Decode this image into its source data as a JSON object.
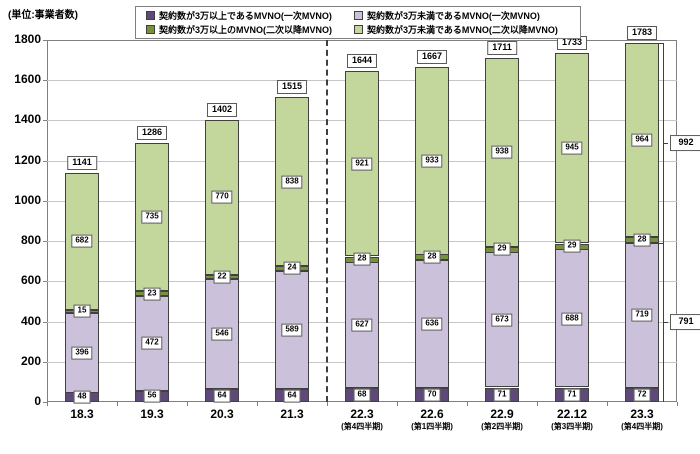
{
  "colors": {
    "grid": "#c6c6c6",
    "plot_border": "#808080",
    "bar_border": "#404040",
    "label_box_border": "#595959",
    "separator": "#3f3f3f",
    "background": "#ffffff"
  },
  "chart_data": {
    "type": "bar",
    "stacked": true,
    "unit_label": "(単位:事業者数)",
    "categories": [
      "18.3",
      "19.3",
      "20.3",
      "21.3",
      "22.3",
      "22.6",
      "22.9",
      "22.12",
      "23.3"
    ],
    "category_sublabels": [
      "",
      "",
      "",
      "",
      "(第4四半期)",
      "(第1四半期)",
      "(第2四半期)",
      "(第3四半期)",
      "(第4四半期)"
    ],
    "series": [
      {
        "name": "契約数が3万以上であるMVNO(一次MVNO)",
        "color": "#5f497a",
        "values": [
          48,
          56,
          64,
          64,
          68,
          70,
          71,
          71,
          72
        ]
      },
      {
        "name": "契約数が3万未満であるMVNO(一次MVNO)",
        "color": "#ccc1da",
        "values": [
          396,
          472,
          546,
          589,
          627,
          636,
          673,
          688,
          719
        ]
      },
      {
        "name": "契約数が3万以上のMVNO(二次以降MVNO)",
        "color": "#76933c",
        "values": [
          15,
          23,
          22,
          24,
          28,
          28,
          29,
          29,
          28
        ]
      },
      {
        "name": "契約数が3万未満であるMVNO(二次以降MVNO)",
        "color": "#c3d69b",
        "values": [
          682,
          735,
          770,
          838,
          921,
          933,
          938,
          945,
          964
        ]
      }
    ],
    "totals": [
      1141,
      1286,
      1402,
      1515,
      1644,
      1667,
      1711,
      1733,
      1783
    ],
    "ylim": [
      0,
      1800
    ],
    "ytick_step": 200,
    "grid": true,
    "legend_position": "top",
    "separator_after_index": 3,
    "annotations": [
      {
        "label": "992",
        "from": 791,
        "to": 1783
      },
      {
        "label": "791",
        "from": 0,
        "to": 791
      }
    ]
  }
}
